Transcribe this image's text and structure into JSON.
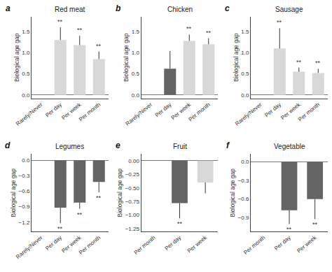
{
  "chart_data": [
    {
      "type": "bar",
      "label": "a",
      "title": "Red meat",
      "ylabel": "Biological age gap",
      "categories": [
        "Rarely/Never",
        "Per day",
        "Per week",
        "Per month"
      ],
      "values": [
        0.0,
        1.3,
        1.18,
        0.85
      ],
      "errors_up": [
        0.0,
        0.3,
        0.22,
        0.18
      ],
      "colors": [
        "#d8d8d8",
        "#d8d8d8",
        "#d8d8d8",
        "#d8d8d8"
      ],
      "annotations": [
        {
          "category": "Per day",
          "text": "**"
        },
        {
          "category": "Per week",
          "text": "**"
        },
        {
          "category": "Per month",
          "text": "**"
        }
      ],
      "ylim": [
        -0.08,
        1.85
      ],
      "yticks": [
        {
          "value": 0.0,
          "label": "0.0"
        },
        0.5,
        {
          "value": 1.0,
          "label": "1.0"
        },
        1.5
      ],
      "grid": false
    },
    {
      "type": "bar",
      "label": "b",
      "title": "Chicken",
      "ylabel": "Biological age gap",
      "categories": [
        "Rarely/Never",
        "Per day",
        "Per week",
        "Per month"
      ],
      "values": [
        0.0,
        0.62,
        1.28,
        1.2
      ],
      "errors_up": [
        0.0,
        0.42,
        0.15,
        0.14
      ],
      "colors": [
        "#d8d8d8",
        "#646464",
        "#d8d8d8",
        "#d8d8d8"
      ],
      "annotations": [
        {
          "category": "Per week",
          "text": "**"
        },
        {
          "category": "Per month",
          "text": "**"
        }
      ],
      "ylim": [
        -0.08,
        1.85
      ],
      "yticks": [
        {
          "value": 0.0,
          "label": "0.0"
        },
        0.5,
        {
          "value": 1.0,
          "label": "1.0"
        },
        1.5
      ],
      "grid": false
    },
    {
      "type": "bar",
      "label": "c",
      "title": "Sausage",
      "ylabel": "Biological age gap",
      "categories": [
        "Rarely/Never",
        "Per day",
        "Per week",
        "Per month"
      ],
      "values": [
        0.0,
        1.1,
        0.55,
        0.52
      ],
      "errors_up": [
        0.0,
        0.48,
        0.1,
        0.1
      ],
      "colors": [
        "#d8d8d8",
        "#d8d8d8",
        "#d8d8d8",
        "#d8d8d8"
      ],
      "annotations": [
        {
          "category": "Per day",
          "text": "**"
        },
        {
          "category": "Per week",
          "text": "**"
        },
        {
          "category": "Per month",
          "text": "**"
        }
      ],
      "ylim": [
        -0.08,
        1.85
      ],
      "yticks": [
        {
          "value": 0.0,
          "label": "0.0"
        },
        0.5,
        {
          "value": 1.0,
          "label": "1.0"
        },
        1.5
      ],
      "grid": false
    },
    {
      "type": "bar",
      "label": "d",
      "title": "Legumes",
      "ylabel": "Biological age gap",
      "categories": [
        "Rarely/Never",
        "Per day",
        "Per week",
        "Per month"
      ],
      "values": [
        0.0,
        -0.92,
        -0.82,
        -0.42
      ],
      "errors_down": [
        0.0,
        0.3,
        0.12,
        0.2
      ],
      "colors": [
        "#646464",
        "#646464",
        "#646464",
        "#646464"
      ],
      "annotations": [
        {
          "category": "Per day",
          "text": "**"
        },
        {
          "category": "Per week",
          "text": "**"
        },
        {
          "category": "Per month",
          "text": "**"
        }
      ],
      "ylim": [
        -1.38,
        0.12
      ],
      "yticks": [
        {
          "value": 0.0,
          "label": "0.0"
        },
        {
          "value": -0.3,
          "label": "−0.3"
        },
        {
          "value": -0.6,
          "label": "−0.6"
        },
        {
          "value": -0.9,
          "label": "−0.9"
        },
        {
          "value": -1.2,
          "label": "−1.2"
        }
      ],
      "grid": false
    },
    {
      "type": "bar",
      "label": "e",
      "title": "Fruit",
      "ylabel": "Biological age gap",
      "categories": [
        "Per month",
        "Per day",
        "Per week"
      ],
      "values": [
        0.0,
        -0.78,
        -0.4
      ],
      "errors_down": [
        0.0,
        0.28,
        0.2
      ],
      "colors": [
        "#646464",
        "#646464",
        "#d8d8d8"
      ],
      "annotations": [
        {
          "category": "Per day",
          "text": "**"
        }
      ],
      "ylim": [
        -1.3,
        0.12
      ],
      "yticks": [
        {
          "value": 0.0,
          "label": "0.00"
        },
        {
          "value": -0.25,
          "label": "−0.25"
        },
        {
          "value": -0.5,
          "label": "−0.50"
        },
        {
          "value": -0.75,
          "label": "−0.75"
        },
        {
          "value": -1.0,
          "label": "−1.00"
        },
        {
          "value": -1.25,
          "label": "−1.25"
        }
      ],
      "grid": false
    },
    {
      "type": "bar",
      "label": "f",
      "title": "Vegetable",
      "ylabel": "Biological age gap",
      "categories": [
        "Per month",
        "Per day",
        "Per week"
      ],
      "values": [
        0.0,
        -0.78,
        -0.6
      ],
      "errors_down": [
        0.0,
        0.22,
        0.32
      ],
      "colors": [
        "#646464",
        "#646464",
        "#646464"
      ],
      "annotations": [
        {
          "category": "Per day",
          "text": "**"
        },
        {
          "category": "Per week",
          "text": "**"
        }
      ],
      "ylim": [
        -1.12,
        0.12
      ],
      "yticks": [
        {
          "value": 0.0,
          "label": "0.0"
        },
        {
          "value": -0.3,
          "label": "−0.3"
        },
        {
          "value": -0.6,
          "label": "−0.6"
        },
        {
          "value": -0.9,
          "label": "−0.9"
        }
      ],
      "grid": false
    }
  ]
}
